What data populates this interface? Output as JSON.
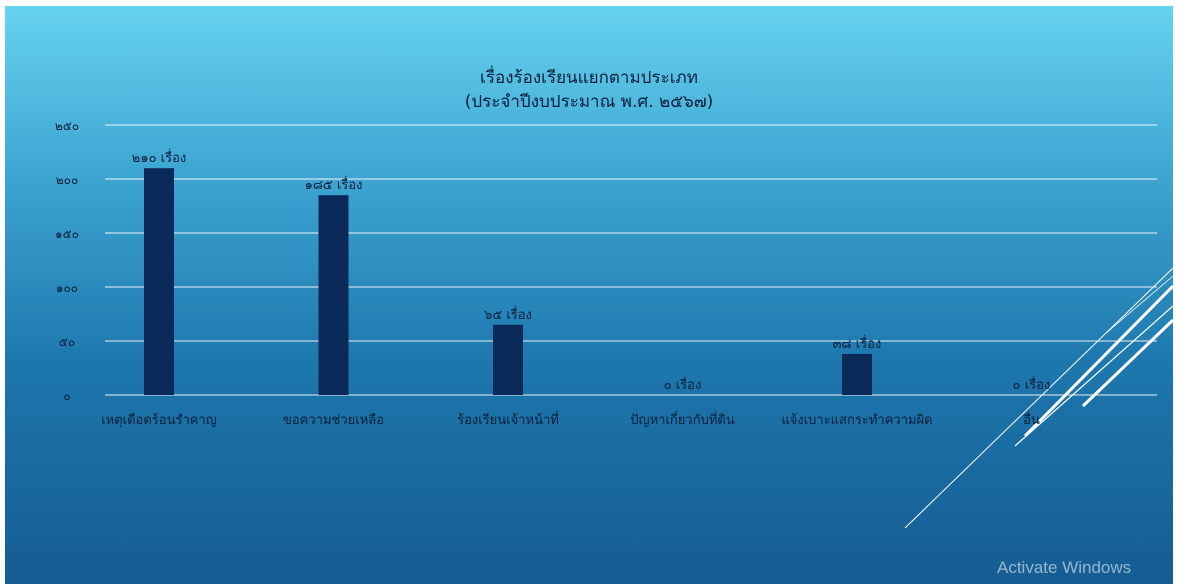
{
  "chart_data": {
    "type": "bar",
    "title": "เรื่องร้องเรียนแยกตามประเภท",
    "subtitle": "(ประจำปีงบประมาณ พ.ศ. ๒๕๖๗)",
    "categories": [
      "เหตุเดือดร้อนรำคาญ",
      "ขอความช่วยเหลือ",
      "ร้องเรียนเจ้าหน้าที่",
      "ปัญหาเกี่ยวกับที่ดิน",
      "แจ้งเบาะแสกระทำความผิด",
      "อื่น"
    ],
    "values": [
      210,
      185,
      65,
      0,
      38,
      0
    ],
    "data_labels": [
      "๒๑๐ เรื่อง",
      "๑๘๕ เรื่อง",
      "๖๕ เรื่อง",
      "๐ เรื่อง",
      "๓๘ เรื่อง",
      "๐ เรื่อง"
    ],
    "yticks": [
      0,
      50,
      100,
      150,
      200,
      250
    ],
    "ytick_labels": [
      "๐",
      "๕๐",
      "๑๐๐",
      "๑๕๐",
      "๒๐๐",
      "๒๕๐"
    ],
    "ylim": [
      0,
      250
    ],
    "grid": true,
    "bar_color": "#0b2a59"
  },
  "watermark": "Activate Windows"
}
